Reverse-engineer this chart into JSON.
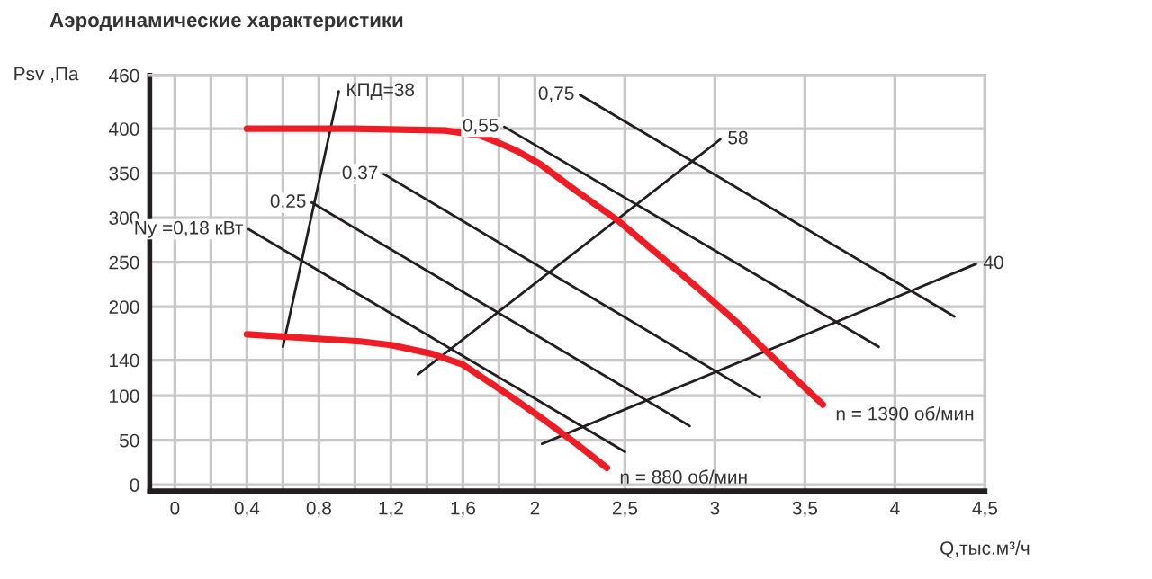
{
  "chart_data": {
    "type": "line",
    "title": "Аэродинамические характеристики",
    "xlabel": "Q,тыс.м³/ч",
    "ylabel": "Psv ,Па",
    "xlim": [
      -0.14,
      4.5
    ],
    "ylim": [
      -7,
      460
    ],
    "xticks": [
      0,
      {
        "value": 0.2,
        "label": null
      },
      {
        "value": 0.4,
        "label": "0,4"
      },
      {
        "value": 0.6,
        "label": null
      },
      {
        "value": 0.8,
        "label": "0,8"
      },
      {
        "value": 1.0,
        "label": null
      },
      {
        "value": 1.2,
        "label": "1,2"
      },
      {
        "value": 1.4,
        "label": null
      },
      {
        "value": 1.6,
        "label": "1,6"
      },
      {
        "value": 1.8,
        "label": null
      },
      2,
      {
        "value": 2.5,
        "label": "2,5"
      },
      3,
      {
        "value": 3.5,
        "label": "3,5"
      },
      4,
      {
        "value": 4.5,
        "label": "4,5"
      }
    ],
    "yticks": [
      0,
      50,
      100,
      140,
      200,
      250,
      300,
      350,
      400,
      460
    ],
    "grid": true,
    "legend": false,
    "marker": "none",
    "line_style": "solid",
    "series": [
      {
        "name": "n = 1390 об/мин",
        "color": "#ee1c24",
        "x": [
          0.4,
          1.0,
          1.5,
          1.7,
          1.8,
          1.9,
          2.03,
          2.23,
          2.46,
          2.9,
          3.13,
          3.28,
          3.6
        ],
        "values": [
          400,
          400,
          398,
          392,
          384,
          375,
          360,
          330,
          297,
          222,
          181,
          151,
          90
        ]
      },
      {
        "name": "n = 880 об/мин",
        "color": "#ee1c24",
        "x": [
          0.4,
          1.03,
          1.2,
          1.43,
          1.6,
          1.86,
          2.03,
          2.23,
          2.4
        ],
        "values": [
          169,
          161,
          157,
          147,
          135,
          100,
          76,
          46,
          19
        ]
      },
      {
        "name": "Ny =0,18 кВт",
        "color": "#231f20",
        "x": [
          0.41,
          2.5
        ],
        "values": [
          287,
          37
        ]
      },
      {
        "name": "0,25",
        "color": "#231f20",
        "x": [
          0.76,
          2.86
        ],
        "values": [
          317,
          66
        ]
      },
      {
        "name": "0,37",
        "color": "#231f20",
        "x": [
          1.16,
          3.25
        ],
        "values": [
          349,
          98
        ]
      },
      {
        "name": "0,55",
        "color": "#231f20",
        "x": [
          1.83,
          3.91
        ],
        "values": [
          402,
          155
        ]
      },
      {
        "name": "0,75",
        "color": "#231f20",
        "x": [
          2.25,
          4.33
        ],
        "values": [
          438,
          189
        ]
      },
      {
        "name": "КПД=38",
        "color": "#231f20",
        "x": [
          0.6,
          0.91
        ],
        "values": [
          155,
          442
        ]
      },
      {
        "name": "58",
        "color": "#231f20",
        "x": [
          1.35,
          3.03
        ],
        "values": [
          124,
          388
        ]
      },
      {
        "name": "40",
        "color": "#231f20",
        "x": [
          2.04,
          4.45
        ],
        "values": [
          46,
          248
        ]
      }
    ]
  }
}
